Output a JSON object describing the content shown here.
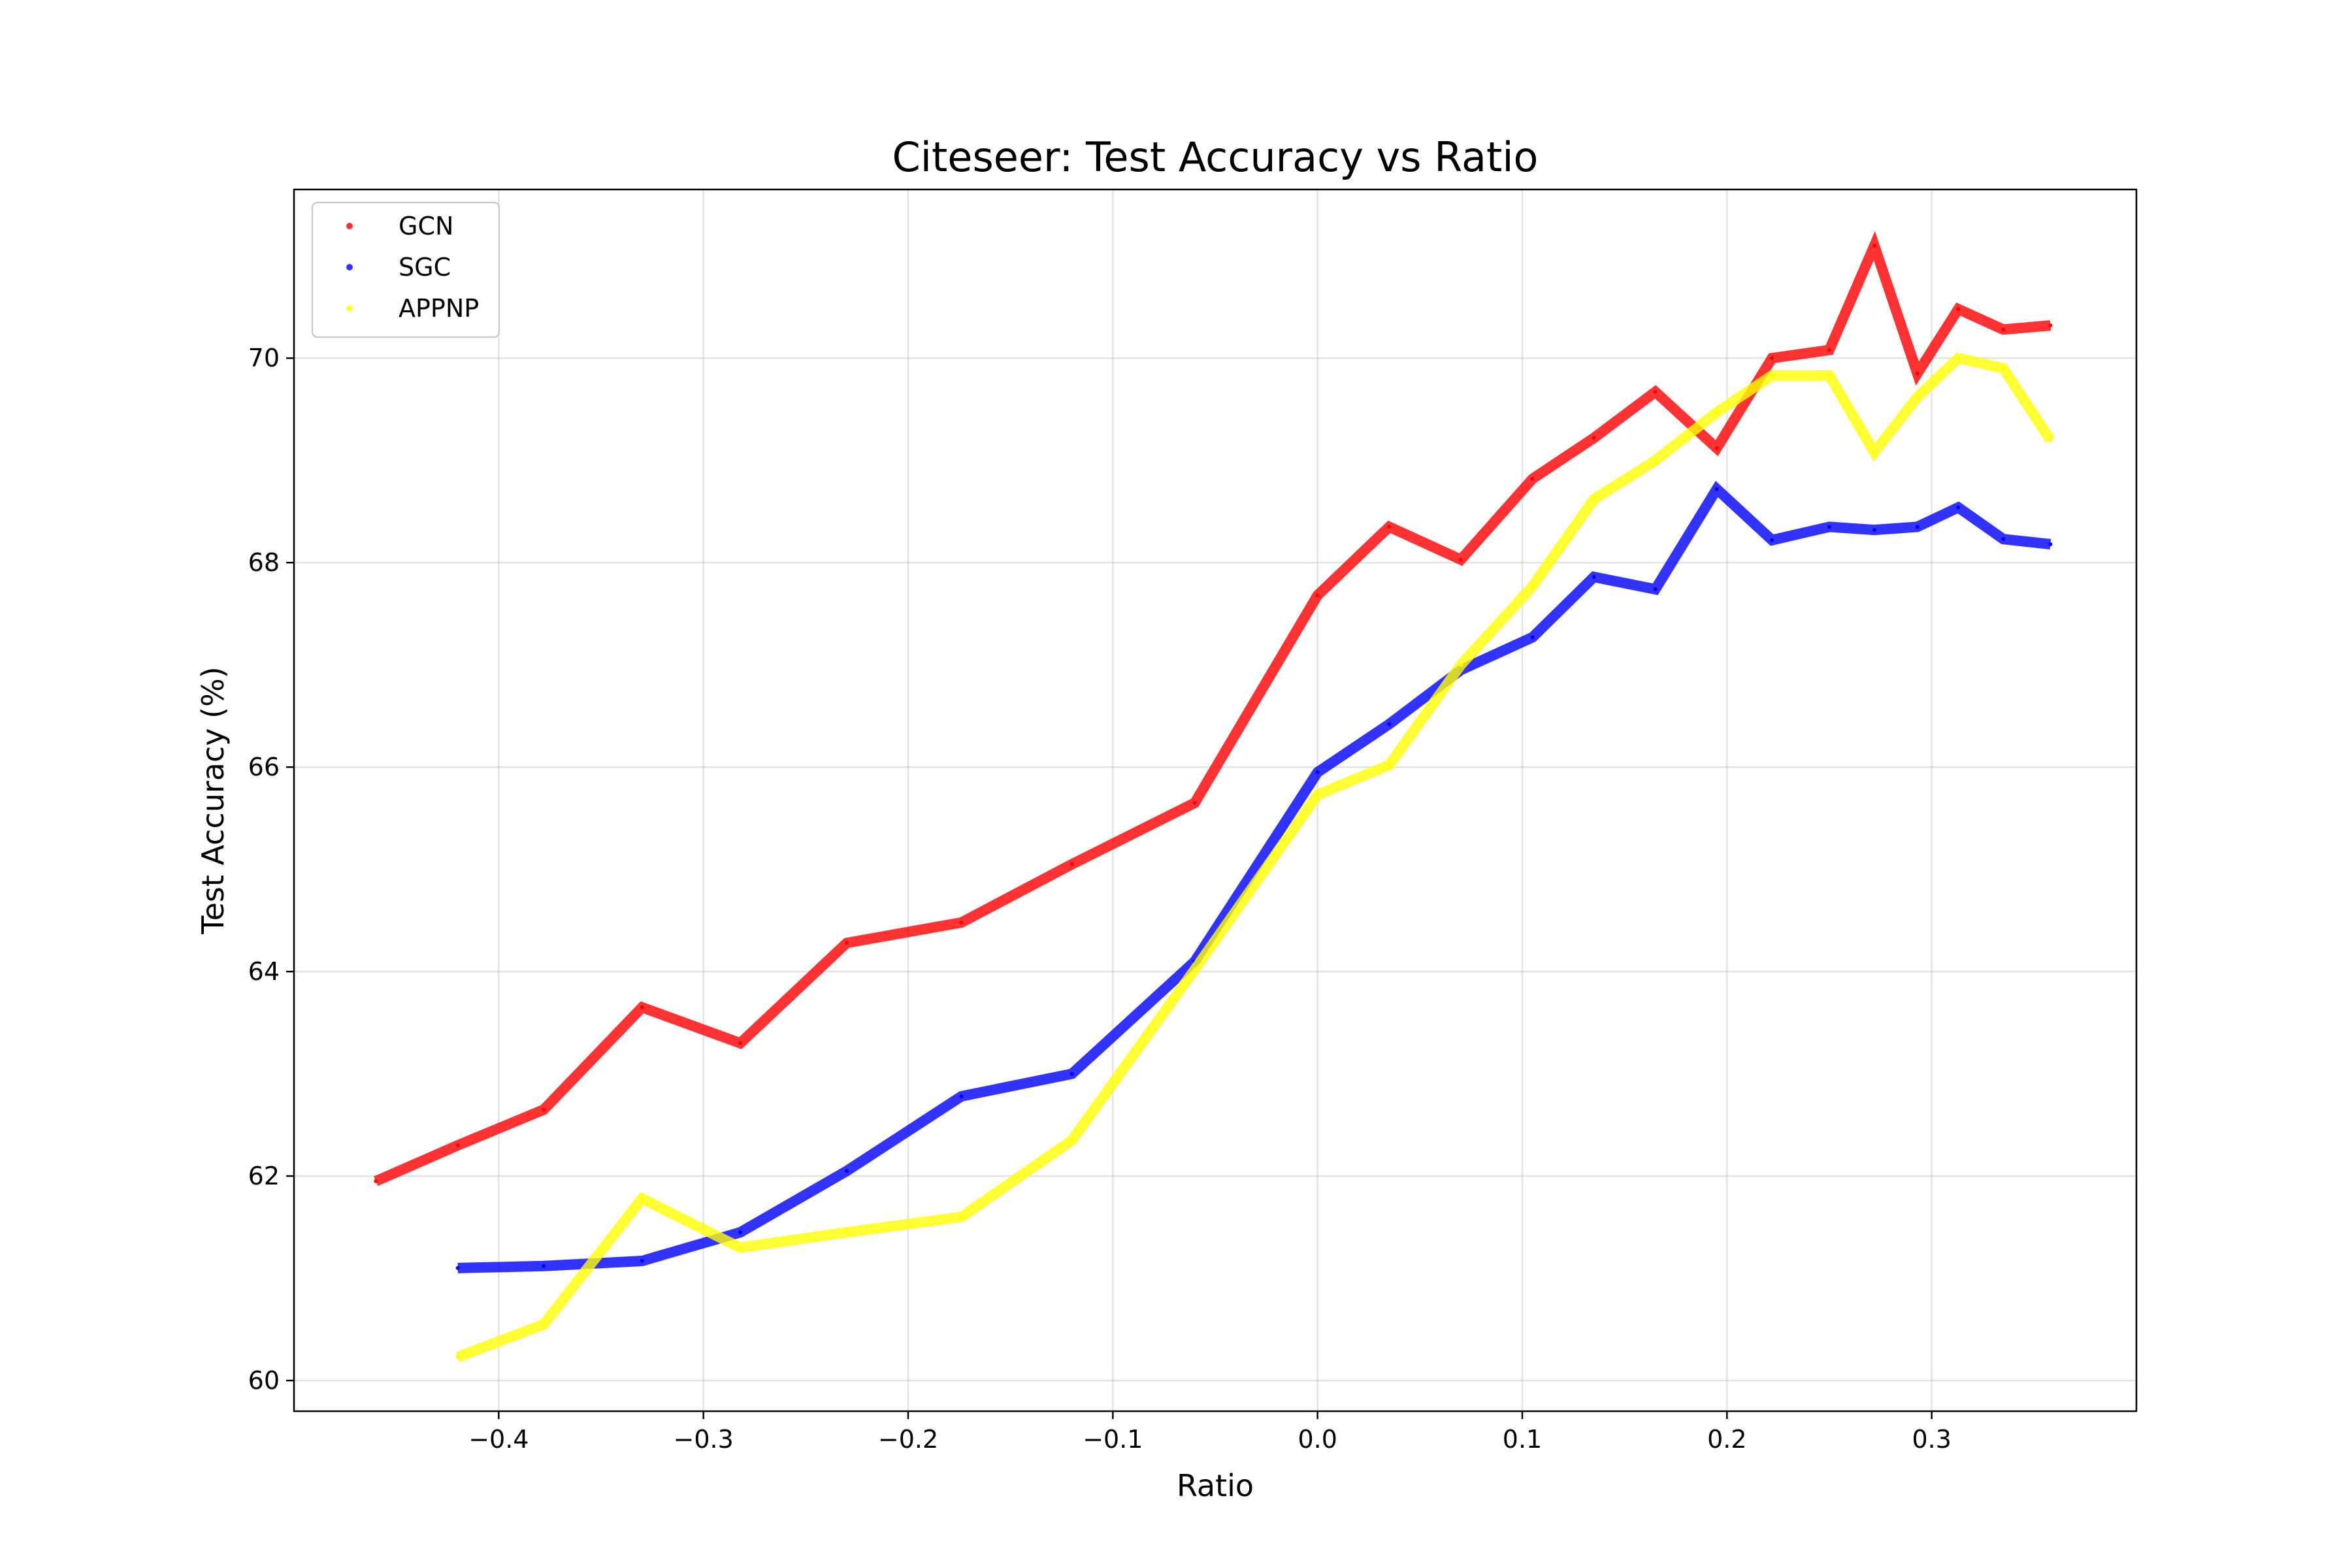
{
  "chart_data": {
    "type": "line",
    "title": "Citeseer: Test Accuracy vs Ratio",
    "xlabel": "Ratio",
    "ylabel": "Test Accuracy (%)",
    "xlim": [
      -0.5,
      0.4
    ],
    "ylim": [
      59.7,
      71.65
    ],
    "xticks": [
      -0.4,
      -0.3,
      -0.2,
      -0.1,
      0.0,
      0.1,
      0.2,
      0.3
    ],
    "xtick_labels": [
      "−0.4",
      "−0.3",
      "−0.2",
      "−0.1",
      "0.0",
      "0.1",
      "0.2",
      "0.3"
    ],
    "yticks": [
      60,
      62,
      64,
      66,
      68,
      70
    ],
    "ytick_labels": [
      "60",
      "62",
      "64",
      "66",
      "68",
      "70"
    ],
    "grid": true,
    "legend_position": "top-left",
    "series": [
      {
        "name": "GCN",
        "color": "#ff0000",
        "x": [
          -0.46,
          -0.42,
          -0.378,
          -0.33,
          -0.282,
          -0.23,
          -0.174,
          -0.12,
          -0.06,
          0.0,
          0.035,
          0.07,
          0.105,
          0.135,
          0.165,
          0.195,
          0.222,
          0.25,
          0.272,
          0.293,
          0.313,
          0.335,
          0.358
        ],
        "y": [
          61.95,
          62.3,
          62.65,
          63.65,
          63.3,
          64.28,
          64.48,
          65.05,
          65.65,
          67.68,
          68.35,
          68.03,
          68.82,
          69.22,
          69.67,
          69.12,
          70.0,
          70.08,
          71.1,
          69.85,
          70.48,
          70.28,
          70.32
        ]
      },
      {
        "name": "SGC",
        "color": "#0000ff",
        "x": [
          -0.42,
          -0.378,
          -0.33,
          -0.282,
          -0.23,
          -0.174,
          -0.12,
          -0.06,
          0.0,
          0.035,
          0.07,
          0.105,
          0.135,
          0.165,
          0.195,
          0.222,
          0.25,
          0.272,
          0.293,
          0.313,
          0.335,
          0.358
        ],
        "y": [
          61.1,
          61.12,
          61.17,
          61.45,
          62.05,
          62.78,
          63.0,
          64.1,
          65.95,
          66.42,
          66.95,
          67.27,
          67.86,
          67.74,
          68.72,
          68.22,
          68.35,
          68.32,
          68.35,
          68.54,
          68.23,
          68.18
        ]
      },
      {
        "name": "APPNP",
        "color": "#ffff00",
        "x": [
          -0.42,
          -0.378,
          -0.33,
          -0.282,
          -0.23,
          -0.174,
          -0.12,
          -0.06,
          0.0,
          0.035,
          0.07,
          0.105,
          0.135,
          0.165,
          0.195,
          0.222,
          0.25,
          0.272,
          0.293,
          0.313,
          0.335,
          0.358
        ],
        "y": [
          60.23,
          60.55,
          61.78,
          61.3,
          61.45,
          61.6,
          62.35,
          64.02,
          65.73,
          66.02,
          67.0,
          67.77,
          68.62,
          69.0,
          69.47,
          69.83,
          69.83,
          69.08,
          69.62,
          70.0,
          69.9,
          69.2
        ]
      }
    ]
  }
}
